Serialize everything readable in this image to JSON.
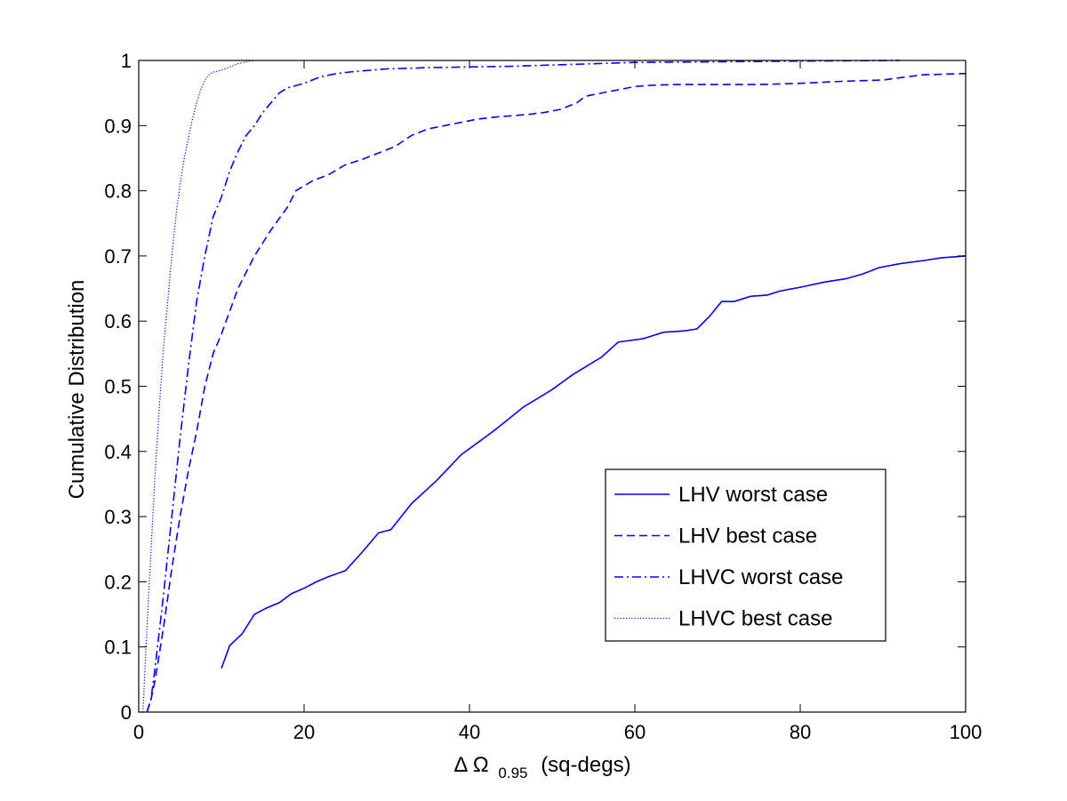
{
  "chart_data": {
    "type": "line",
    "title": "",
    "xlabel": {
      "symbol": "Δ Ω",
      "subscript": "0.95",
      "unit": "(sq-degs)"
    },
    "ylabel": "Cumulative  Distribution",
    "xlim": [
      0,
      100
    ],
    "ylim": [
      0,
      1
    ],
    "x_ticks": [
      0,
      20,
      40,
      60,
      80,
      100
    ],
    "x_tick_labels": [
      "0",
      "20",
      "40",
      "60",
      "80",
      "100"
    ],
    "y_ticks": [
      0,
      0.1,
      0.2,
      0.3,
      0.4,
      0.5,
      0.6,
      0.7,
      0.8,
      0.9,
      1
    ],
    "y_tick_labels": [
      "0",
      "0.1",
      "0.2",
      "0.3",
      "0.4",
      "0.5",
      "0.6",
      "0.7",
      "0.8",
      "0.9",
      "1"
    ],
    "grid": false,
    "legend_position": "bottom-right",
    "series": [
      {
        "name": "LHV worst case",
        "color": "#0000ff",
        "style": "solid",
        "x": [
          10,
          11,
          12.5,
          14,
          15.5,
          17,
          18.5,
          20,
          21.5,
          23,
          25,
          27,
          29,
          30.5,
          33,
          36,
          39,
          43,
          46.5,
          50,
          52.5,
          56,
          58,
          61,
          63.5,
          66,
          67.5,
          69,
          70.5,
          72,
          74,
          76,
          77.5,
          80,
          83,
          85.5,
          87.5,
          89.5,
          92,
          95,
          97,
          100
        ],
        "y": [
          0.067,
          0.102,
          0.12,
          0.15,
          0.16,
          0.168,
          0.182,
          0.19,
          0.2,
          0.208,
          0.217,
          0.245,
          0.275,
          0.28,
          0.32,
          0.355,
          0.395,
          0.432,
          0.468,
          0.495,
          0.518,
          0.545,
          0.568,
          0.573,
          0.583,
          0.585,
          0.588,
          0.607,
          0.63,
          0.63,
          0.638,
          0.64,
          0.646,
          0.652,
          0.66,
          0.665,
          0.672,
          0.682,
          0.688,
          0.693,
          0.697,
          0.7
        ],
        "label_symbol": "solid"
      },
      {
        "name": "LHV best case",
        "color": "#0000ff",
        "style": "dashed",
        "x": [
          1,
          1.5,
          2,
          3,
          4,
          5,
          6,
          7,
          8,
          9,
          10,
          12,
          14,
          16,
          18,
          19,
          21,
          23,
          25,
          27,
          29,
          31,
          33,
          35,
          37,
          39,
          41,
          43,
          45,
          47,
          49,
          51,
          53,
          54,
          56,
          58,
          60,
          62,
          65,
          70,
          75,
          80,
          85,
          90,
          93,
          95,
          100
        ],
        "y": [
          0.0,
          0.02,
          0.05,
          0.13,
          0.22,
          0.3,
          0.37,
          0.43,
          0.5,
          0.55,
          0.58,
          0.65,
          0.7,
          0.74,
          0.775,
          0.8,
          0.815,
          0.825,
          0.84,
          0.848,
          0.858,
          0.868,
          0.885,
          0.895,
          0.9,
          0.905,
          0.91,
          0.913,
          0.915,
          0.917,
          0.92,
          0.925,
          0.935,
          0.945,
          0.95,
          0.955,
          0.96,
          0.962,
          0.963,
          0.963,
          0.963,
          0.965,
          0.968,
          0.97,
          0.975,
          0.978,
          0.98
        ],
        "label_symbol": "dashed"
      },
      {
        "name": "LHVC worst case",
        "color": "#0000ff",
        "style": "dashdot",
        "x": [
          1,
          1.5,
          2,
          3,
          4,
          5,
          6,
          7,
          8,
          9,
          10,
          11,
          12,
          13,
          14,
          15,
          16,
          17,
          18,
          20,
          22,
          24,
          26,
          28,
          30,
          35,
          40,
          45,
          50,
          55,
          60,
          70,
          80,
          92
        ],
        "y": [
          0.0,
          0.02,
          0.07,
          0.18,
          0.3,
          0.42,
          0.53,
          0.63,
          0.7,
          0.76,
          0.79,
          0.83,
          0.86,
          0.885,
          0.9,
          0.92,
          0.935,
          0.95,
          0.958,
          0.965,
          0.975,
          0.98,
          0.983,
          0.985,
          0.987,
          0.989,
          0.99,
          0.991,
          0.993,
          0.995,
          0.997,
          0.998,
          0.999,
          1.0
        ],
        "label_symbol": "dashdot"
      },
      {
        "name": "LHVC best case",
        "color": "#0000ff",
        "style": "dotted",
        "x": [
          0.5,
          1,
          1.5,
          2,
          2.5,
          3,
          3.5,
          4,
          4.5,
          5,
          5.5,
          6,
          6.5,
          7,
          7.5,
          8,
          8.5,
          9,
          10,
          11,
          12,
          13,
          14
        ],
        "y": [
          0.0,
          0.13,
          0.25,
          0.37,
          0.47,
          0.56,
          0.63,
          0.7,
          0.76,
          0.81,
          0.85,
          0.88,
          0.91,
          0.935,
          0.955,
          0.97,
          0.978,
          0.982,
          0.985,
          0.99,
          0.995,
          0.998,
          1.0
        ],
        "label_symbol": "dotted"
      }
    ]
  }
}
